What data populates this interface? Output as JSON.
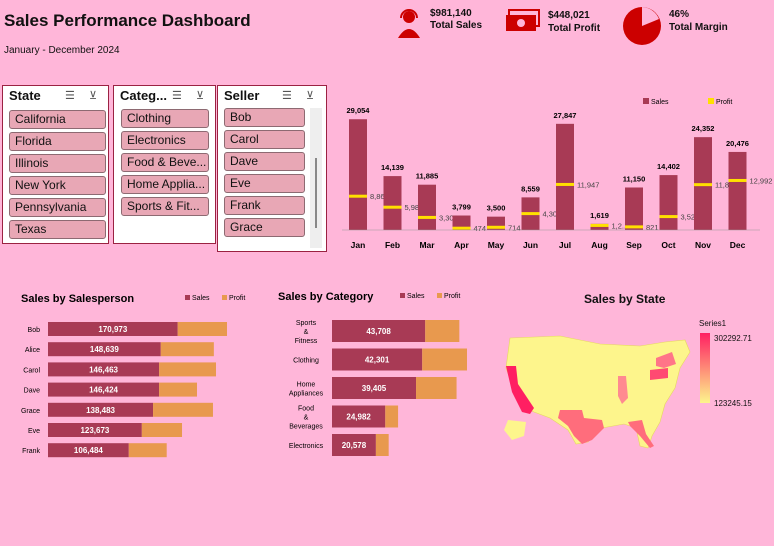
{
  "header": {
    "title": "Sales Performance Dashboard",
    "subtitle": "January - December 2024"
  },
  "kpis": [
    {
      "value": "$981,140",
      "label": "Total Sales",
      "icon": "headset-person-icon"
    },
    {
      "value": "$448,021",
      "label": "Total Profit",
      "icon": "money-bill-icon"
    },
    {
      "value": "46%",
      "label": "Total Margin",
      "icon": "pie-slice-icon"
    }
  ],
  "colors": {
    "background": "#ffb6d9",
    "sales": "#a83a55",
    "profit": "#e8994e",
    "margin_line": "#ffe000",
    "accent": "#cc0000"
  },
  "slicers": {
    "state": {
      "title": "State",
      "items": [
        "California",
        "Florida",
        "Illinois",
        "New York",
        "Pennsylvania",
        "Texas"
      ]
    },
    "category": {
      "title": "Categ...",
      "items": [
        "Clothing",
        "Electronics",
        "Food & Beve...",
        "Home Applia...",
        "Sports & Fit..."
      ]
    },
    "seller": {
      "title": "Seller",
      "items": [
        "Bob",
        "Carol",
        "Dave",
        "Eve",
        "Frank",
        "Grace"
      ]
    }
  },
  "chart_data": [
    {
      "type": "bar",
      "title": "",
      "categories": [
        "Jan",
        "Feb",
        "Mar",
        "Apr",
        "May",
        "Jun",
        "Jul",
        "Aug",
        "Sep",
        "Oct",
        "Nov",
        "Dec"
      ],
      "series": [
        {
          "name": "Sales",
          "values": [
            29054,
            14139,
            11885,
            3799,
            3500,
            8559,
            27847,
            1619,
            11150,
            14402,
            24352,
            20476
          ],
          "labels": [
            "29,054",
            "14,139",
            "11,885",
            "3,799",
            "3,500",
            "8,559",
            "27,847",
            "1,619",
            "11,150",
            "14,402",
            "24,352",
            "20,476"
          ]
        },
        {
          "name": "Profit",
          "values": [
            8867,
            5981,
            3300,
            474,
            714,
            4301,
            11947,
            1200,
            821,
            3521,
            11897,
            12992
          ],
          "labels": [
            "8,867",
            "5,981",
            "3,300",
            "474",
            "714",
            "4,301",
            "11,947",
            "1,2...",
            "821",
            "3,521",
            "11,897",
            "12,992"
          ]
        }
      ],
      "ylim": [
        0,
        32000
      ],
      "legend": "top-right"
    },
    {
      "type": "bar",
      "orientation": "horizontal",
      "title": "Sales by Salesperson",
      "categories": [
        "Bob",
        "Alice",
        "Carol",
        "Dave",
        "Grace",
        "Eve",
        "Frank"
      ],
      "series": [
        {
          "name": "Sales",
          "values": [
            170973,
            148639,
            146463,
            146424,
            138483,
            123673,
            106484
          ],
          "labels": [
            "170,973",
            "148,639",
            "146,463",
            "146,424",
            "138,483",
            "123,673",
            "106,484"
          ]
        },
        {
          "name": "Profit",
          "values": [
            65000,
            70000,
            75000,
            50000,
            79000,
            53000,
            50000
          ]
        }
      ],
      "legend": "top"
    },
    {
      "type": "bar",
      "orientation": "horizontal",
      "title": "Sales by Category",
      "categories": [
        "Sports & Fitness",
        "Clothing",
        "Home Appliances",
        "Food & Beverages",
        "Electronics"
      ],
      "series": [
        {
          "name": "Sales",
          "values": [
            43708,
            42301,
            39405,
            24982,
            20578
          ],
          "labels": [
            "43,708",
            "42,301",
            "39,405",
            "24,982",
            "20,578"
          ]
        },
        {
          "name": "Profit",
          "values": [
            16000,
            21000,
            19000,
            6000,
            6000
          ]
        }
      ],
      "legend": "top"
    },
    {
      "type": "map",
      "title": "Sales by State",
      "legend_title": "Series1",
      "scale_max": "302292.71",
      "scale_min": "123245.15",
      "highlighted_states": [
        "California",
        "Texas",
        "Florida",
        "Illinois",
        "New York",
        "Pennsylvania"
      ]
    }
  ]
}
